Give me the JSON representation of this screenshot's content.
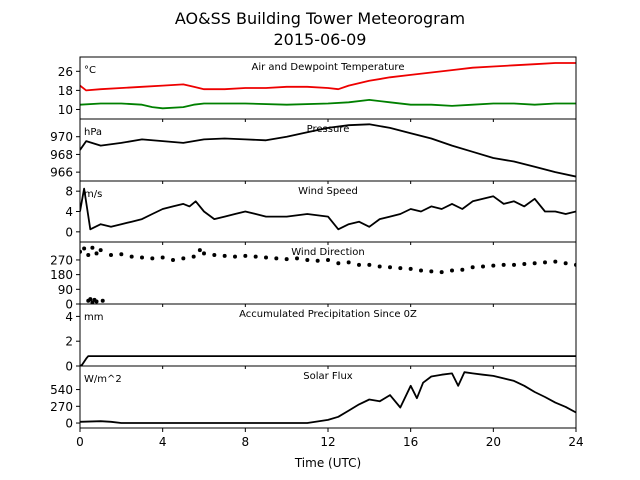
{
  "title": "AO&SS Building Tower Meteorogram",
  "subtitle": "2015-06-09",
  "xlabel": "Time (UTC)",
  "colors": {
    "temperature": "#ee0000",
    "dewpoint": "#008000",
    "default": "#000000"
  },
  "chart_data": [
    {
      "type": "line",
      "title": "Air and Dewpoint Temperature",
      "unit": "°C",
      "x_ticks": [
        0,
        4,
        8,
        12,
        16,
        20,
        24
      ],
      "y_ticks": [
        10,
        18,
        26
      ],
      "xlim": [
        0,
        24
      ],
      "ylim": [
        6,
        32
      ],
      "series": [
        {
          "key": "temperature",
          "color": "#ee0000",
          "x": [
            0,
            0.3,
            1,
            2,
            3,
            4,
            5,
            5.5,
            6,
            7,
            8,
            9,
            10,
            11,
            12,
            12.5,
            13,
            14,
            15,
            16,
            17,
            18,
            19,
            20,
            21,
            22,
            23,
            24
          ],
          "y": [
            20,
            18,
            18.5,
            19,
            19.5,
            20,
            20.5,
            19.5,
            18.5,
            18.5,
            19,
            19,
            19.5,
            19.5,
            19,
            18.5,
            20,
            22,
            23.5,
            24.5,
            25.5,
            26.5,
            27.5,
            28,
            28.5,
            29,
            29.5,
            29.5
          ]
        },
        {
          "key": "dewpoint",
          "color": "#008000",
          "x": [
            0,
            1,
            2,
            3,
            3.5,
            4,
            5,
            5.5,
            6,
            8,
            10,
            12,
            13,
            14,
            15,
            16,
            17,
            18,
            19,
            20,
            21,
            22,
            23,
            24
          ],
          "y": [
            12,
            12.5,
            12.5,
            12,
            11,
            10.5,
            11,
            12,
            12.5,
            12.5,
            12,
            12.5,
            13,
            14,
            13,
            12,
            12,
            11.5,
            12,
            12.5,
            12.5,
            12,
            12.5,
            12.5
          ]
        }
      ]
    },
    {
      "type": "line",
      "title": "Pressure",
      "unit": "hPa",
      "x_ticks": [
        0,
        4,
        8,
        12,
        16,
        20,
        24
      ],
      "y_ticks": [
        966,
        968,
        970
      ],
      "xlim": [
        0,
        24
      ],
      "ylim": [
        965,
        972
      ],
      "series": [
        {
          "key": "pressure",
          "color": "#000000",
          "x": [
            0,
            0.3,
            1,
            2,
            3,
            4,
            5,
            6,
            7,
            8,
            9,
            10,
            11,
            12,
            13,
            14,
            15,
            16,
            17,
            18,
            19,
            20,
            21,
            22,
            23,
            24
          ],
          "y": [
            968.5,
            969.5,
            969,
            969.3,
            969.7,
            969.5,
            969.3,
            969.7,
            969.8,
            969.7,
            969.6,
            970,
            970.5,
            971,
            971.3,
            971.4,
            971,
            970.4,
            969.8,
            969,
            968.3,
            967.6,
            967.2,
            966.6,
            966,
            965.5
          ]
        }
      ]
    },
    {
      "type": "line",
      "title": "Wind Speed",
      "unit": "m/s",
      "x_ticks": [
        0,
        4,
        8,
        12,
        16,
        20,
        24
      ],
      "y_ticks": [
        0,
        4,
        8
      ],
      "xlim": [
        0,
        24
      ],
      "ylim": [
        -2,
        10
      ],
      "series": [
        {
          "key": "wind_speed",
          "color": "#000000",
          "x": [
            0,
            0.2,
            0.5,
            1,
            1.5,
            2,
            2.5,
            3,
            3.5,
            4,
            4.5,
            5,
            5.3,
            5.6,
            6,
            6.5,
            7,
            7.5,
            8,
            8.5,
            9,
            10,
            11,
            12,
            12.5,
            13,
            13.5,
            14,
            14.5,
            15,
            15.5,
            16,
            16.5,
            17,
            17.5,
            18,
            18.5,
            19,
            19.5,
            20,
            20.5,
            21,
            21.5,
            22,
            22.5,
            23,
            23.5,
            24
          ],
          "y": [
            4,
            8.5,
            0.5,
            1.5,
            1,
            1.5,
            2,
            2.5,
            3.5,
            4.5,
            5,
            5.5,
            5,
            6,
            4,
            2.5,
            3,
            3.5,
            4,
            3.5,
            3,
            3,
            3.5,
            3,
            0.5,
            1.5,
            2,
            1,
            2.5,
            3,
            3.5,
            4.5,
            4,
            5,
            4.5,
            5.5,
            4.5,
            6,
            6.5,
            7,
            5.5,
            6,
            5,
            6.5,
            4,
            4,
            3.5,
            4
          ]
        }
      ]
    },
    {
      "type": "scatter",
      "title": "Wind Direction",
      "unit": "",
      "x_ticks": [
        0,
        4,
        8,
        12,
        16,
        20,
        24
      ],
      "y_ticks": [
        0,
        90,
        180,
        270
      ],
      "xlim": [
        0,
        24
      ],
      "ylim": [
        0,
        380
      ],
      "series": [
        {
          "key": "wind_direction",
          "color": "#000000",
          "x": [
            0,
            0.2,
            0.4,
            0.6,
            0.8,
            1,
            1.5,
            2,
            2.5,
            3,
            3.5,
            4,
            4.5,
            5,
            5.5,
            5.8,
            6,
            6.5,
            7,
            7.5,
            8,
            8.5,
            9,
            9.5,
            10,
            10.5,
            11,
            11.5,
            12,
            12.5,
            13,
            13.5,
            14,
            14.5,
            15,
            15.5,
            16,
            16.5,
            17,
            17.5,
            18,
            18.5,
            19,
            19.5,
            20,
            20.5,
            21,
            21.5,
            22,
            22.5,
            23,
            23.5,
            24
          ],
          "y": [
            320,
            340,
            300,
            345,
            310,
            330,
            300,
            305,
            290,
            285,
            280,
            285,
            270,
            280,
            290,
            330,
            310,
            300,
            295,
            290,
            295,
            290,
            285,
            280,
            275,
            280,
            270,
            265,
            270,
            250,
            255,
            240,
            240,
            230,
            225,
            220,
            215,
            205,
            200,
            195,
            205,
            210,
            225,
            230,
            235,
            240,
            240,
            245,
            250,
            255,
            260,
            250,
            240
          ]
        },
        {
          "key": "wind_direction_low",
          "color": "#000000",
          "x": [
            0.4,
            0.5,
            0.6,
            0.7,
            0.8,
            1.1
          ],
          "y": [
            20,
            30,
            10,
            25,
            15,
            20
          ]
        }
      ]
    },
    {
      "type": "line",
      "title": "Accumulated Precipitation Since 0Z",
      "unit": "mm",
      "x_ticks": [
        0,
        4,
        8,
        12,
        16,
        20,
        24
      ],
      "y_ticks": [
        0,
        2,
        4
      ],
      "xlim": [
        0,
        24
      ],
      "ylim": [
        0,
        5
      ],
      "series": [
        {
          "key": "precip",
          "color": "#000000",
          "x": [
            0,
            0.1,
            0.3,
            0.4,
            24
          ],
          "y": [
            0,
            0.1,
            0.6,
            0.8,
            0.8
          ]
        }
      ]
    },
    {
      "type": "line",
      "title": "Solar Flux",
      "unit": "W/m^2",
      "x_ticks": [
        0,
        4,
        8,
        12,
        16,
        20,
        24
      ],
      "y_ticks": [
        0,
        270,
        540
      ],
      "xlim": [
        0,
        24
      ],
      "ylim": [
        -80,
        920
      ],
      "series": [
        {
          "key": "solar",
          "color": "#000000",
          "x": [
            0,
            1,
            1.5,
            2,
            3,
            4,
            5,
            6,
            7,
            8,
            9,
            10,
            11,
            12,
            12.5,
            13,
            13.5,
            14,
            14.5,
            15,
            15.5,
            16,
            16.3,
            16.6,
            17,
            17.5,
            18,
            18.3,
            18.6,
            19,
            19.5,
            20,
            20.5,
            21,
            21.5,
            22,
            22.5,
            23,
            23.5,
            24
          ],
          "y": [
            20,
            30,
            20,
            0,
            0,
            0,
            0,
            0,
            0,
            0,
            0,
            0,
            0,
            50,
            100,
            200,
            300,
            380,
            350,
            450,
            250,
            600,
            400,
            650,
            750,
            780,
            800,
            600,
            820,
            800,
            780,
            760,
            720,
            680,
            600,
            500,
            420,
            330,
            260,
            170
          ]
        }
      ]
    }
  ]
}
